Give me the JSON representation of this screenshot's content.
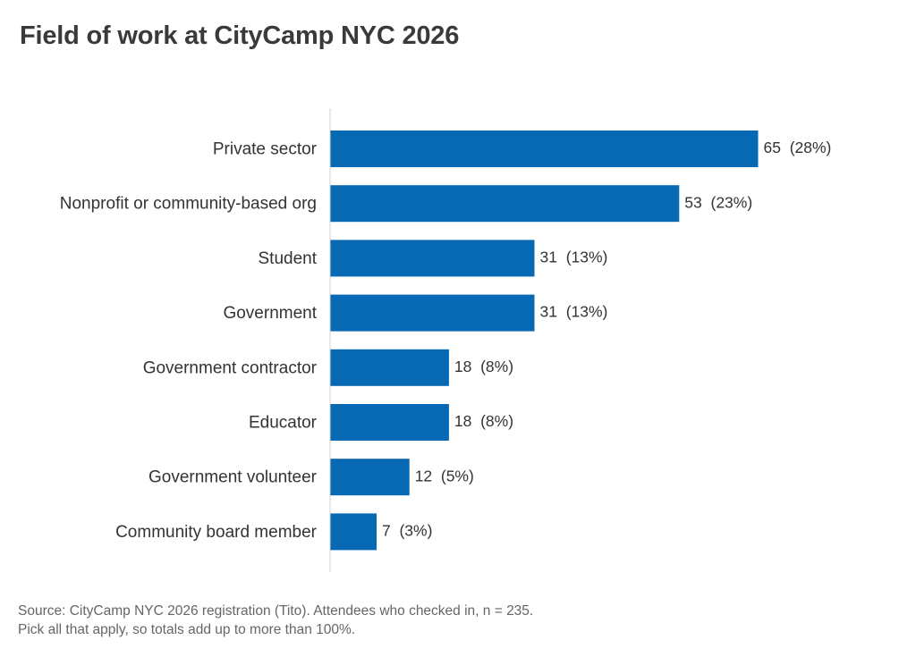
{
  "title": "Field of work at CityCamp NYC 2026",
  "chart_data": {
    "type": "bar",
    "orientation": "horizontal",
    "title": "Field of work at CityCamp NYC 2026",
    "categories": [
      "Private sector",
      "Nonprofit or community-based org",
      "Student",
      "Government",
      "Government contractor",
      "Educator",
      "Government volunteer",
      "Community board member"
    ],
    "values": [
      65,
      53,
      31,
      31,
      18,
      18,
      12,
      7
    ],
    "data_labels": [
      "65  (28%)",
      "53  (23%)",
      "31  (13%)",
      "31  (13%)",
      "18  (8%)",
      "18  (8%)",
      "12  (5%)",
      "7  (3%)"
    ],
    "xlim": [
      0,
      65
    ],
    "xlabel": "",
    "ylabel": "",
    "grid": false,
    "legend": "none",
    "bar_color": "#0769b4",
    "axis_color": "#d0d0d0"
  },
  "notes": [
    "Source: CityCamp NYC 2026 registration (Tito). Attendees who checked in, n = 235.",
    "Pick all that apply, so totals add up to more than 100%."
  ]
}
